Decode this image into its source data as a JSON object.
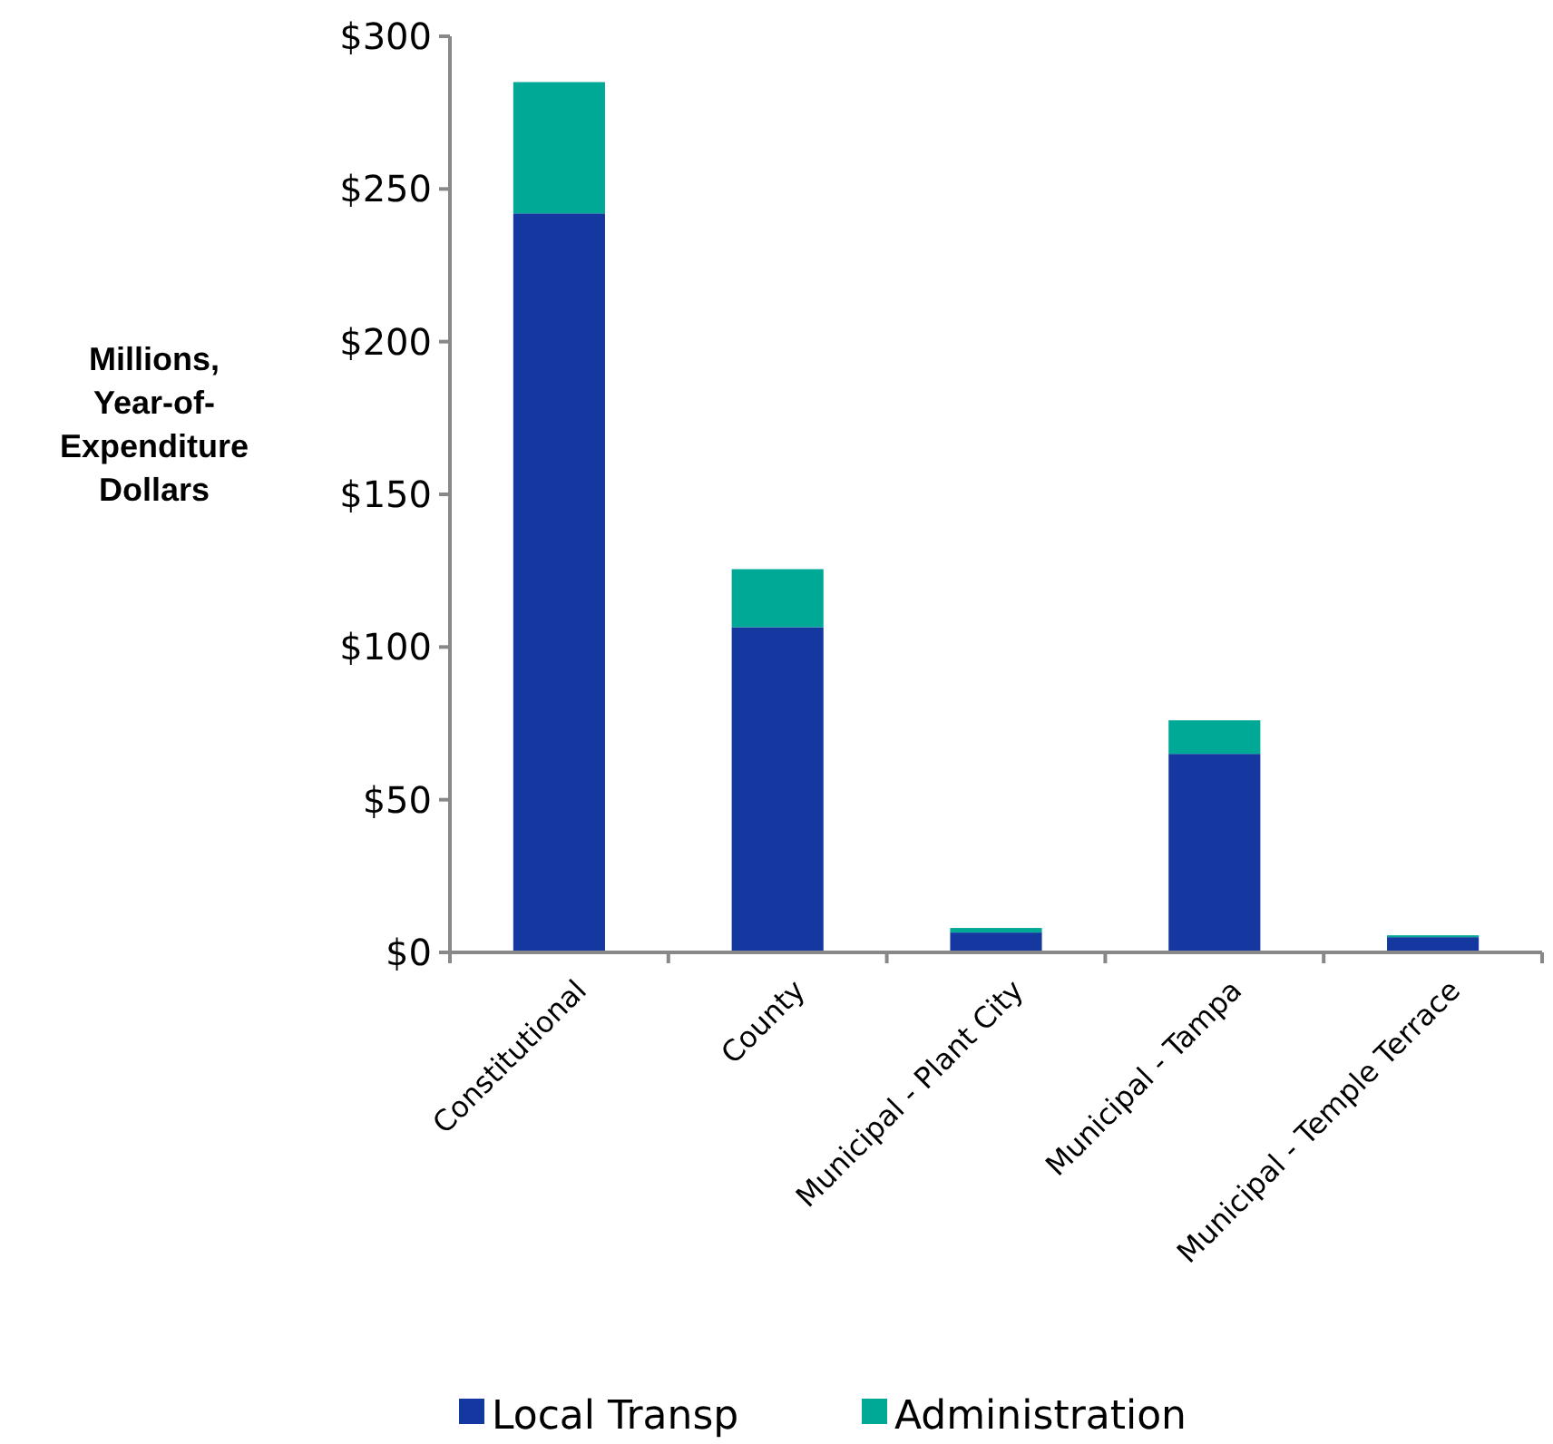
{
  "chart_data": {
    "type": "bar",
    "stacked": true,
    "ylabel": "Millions, Year-of-Expenditure Dollars",
    "categories": [
      "Constitutional",
      "County",
      "Municipal - Plant City",
      "Municipal - Tampa",
      "Municipal - Temple Terrace"
    ],
    "series": [
      {
        "name": "Local Transp",
        "color": "#1438a0",
        "values": [
          242,
          106.5,
          6.5,
          65,
          5
        ]
      },
      {
        "name": "Administration",
        "color": "#00a896",
        "values": [
          43,
          19,
          1.5,
          11,
          0.6
        ]
      }
    ],
    "ylim": [
      0,
      300
    ],
    "yticks": [
      {
        "value": 0,
        "label": "$0"
      },
      {
        "value": 50,
        "label": "$50"
      },
      {
        "value": 100,
        "label": "$100"
      },
      {
        "value": 150,
        "label": "$150"
      },
      {
        "value": 200,
        "label": "$200"
      },
      {
        "value": 250,
        "label": "$250"
      },
      {
        "value": 300,
        "label": "$300"
      }
    ],
    "grid": false,
    "legend": "bottom"
  }
}
